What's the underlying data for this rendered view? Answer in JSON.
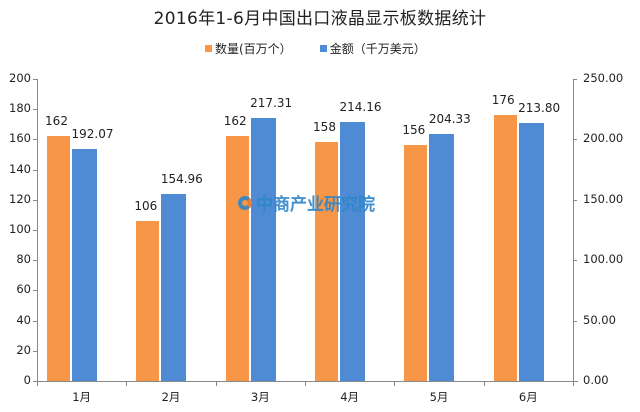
{
  "title": "2016年1-6月中国出口液晶显示板数据统计",
  "legend": [
    {
      "label": "数量(百万个）",
      "color": "#F79646"
    },
    {
      "label": "金额（千万美元）",
      "color": "#4F8AD4"
    }
  ],
  "watermark": "中商产业研究院",
  "colors": {
    "series1": "#F79646",
    "series2": "#4F8AD4",
    "axis": "#888888"
  },
  "chart_data": {
    "type": "bar",
    "title": "2016年1-6月中国出口液晶显示板数据统计",
    "categories": [
      "1月",
      "2月",
      "3月",
      "4月",
      "5月",
      "6月"
    ],
    "series": [
      {
        "name": "数量(百万个）",
        "axis": "left",
        "values": [
          162,
          106,
          162,
          158,
          156,
          176
        ],
        "labels": [
          "162",
          "106",
          "162",
          "158",
          "156",
          "176"
        ]
      },
      {
        "name": "金额（千万美元）",
        "axis": "right",
        "values": [
          192.07,
          154.96,
          217.31,
          214.16,
          204.33,
          213.8
        ],
        "labels": [
          "192.07",
          "154.96",
          "217.31",
          "214.16",
          "204.33",
          "213.80"
        ]
      }
    ],
    "y_left": {
      "range": [
        0,
        200
      ],
      "ticks": [
        "0",
        "20",
        "40",
        "60",
        "80",
        "100",
        "120",
        "140",
        "160",
        "180",
        "200"
      ]
    },
    "y_right": {
      "range": [
        0,
        250
      ],
      "ticks": [
        "0.00",
        "50.00",
        "100.00",
        "150.00",
        "200.00",
        "250.00"
      ]
    },
    "xlabel": "",
    "ylabel": "",
    "grid": false,
    "legend_position": "top"
  }
}
